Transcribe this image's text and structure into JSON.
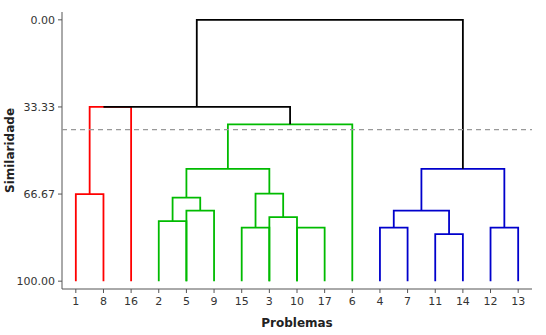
{
  "chart_data": {
    "type": "dendrogram",
    "x_label": "Problemas",
    "y_label": "Similaridade",
    "categories": [
      "1",
      "8",
      "16",
      "2",
      "5",
      "9",
      "15",
      "3",
      "10",
      "17",
      "6",
      "4",
      "7",
      "11",
      "14",
      "12",
      "13"
    ],
    "ylim": [
      103.0,
      -3.0
    ],
    "yticks": [
      {
        "value": 0.0,
        "label": "0.00"
      },
      {
        "value": 33.33,
        "label": "33.33"
      },
      {
        "value": 66.67,
        "label": "66.67"
      },
      {
        "value": 100.0,
        "label": "100.00"
      }
    ],
    "grid": false,
    "threshold": 42.0,
    "threshold_color": "#999999",
    "clusters": [
      {
        "color": "#ff0000",
        "merges": [
          {
            "x1": 0,
            "x2": 1,
            "h": 66.67,
            "h1": 100.0,
            "h2": 100.0
          },
          {
            "x1": 0.5,
            "x2": 2,
            "h": 33.33,
            "h1": 66.67,
            "h2": 100.0
          }
        ]
      },
      {
        "color": "#00bb00",
        "merges": [
          {
            "x1": 3,
            "x2": 4,
            "h": 77.0,
            "h1": 100.0,
            "h2": 100.0
          },
          {
            "x1": 4,
            "x2": 5,
            "h": 73.0,
            "h1": 100.0,
            "h2": 100.0
          },
          {
            "x1": 3.5,
            "x2": 4.5,
            "h": 68.0,
            "h1": 77.0,
            "h2": 73.0
          },
          {
            "x1": 6,
            "x2": 7,
            "h": 79.5,
            "h1": 100.0,
            "h2": 100.0
          },
          {
            "x1": 8,
            "x2": 9,
            "h": 79.5,
            "h1": 100.0,
            "h2": 100.0
          },
          {
            "x1": 7,
            "x2": 8,
            "h": 75.5,
            "h1": 100.0,
            "h2": 100.0
          },
          {
            "x1": 6.5,
            "x2": 7.5,
            "h": 66.5,
            "h1": 79.5,
            "h2": 75.5
          },
          {
            "x1": 4.0,
            "x2": 7.0,
            "h": 57.0,
            "h1": 68.0,
            "h2": 66.5
          },
          {
            "x1": 5.5,
            "x2": 10,
            "h": 40.0,
            "h1": 57.0,
            "h2": 100.0
          }
        ]
      },
      {
        "color": "#0000cc",
        "merges": [
          {
            "x1": 11,
            "x2": 12,
            "h": 79.5,
            "h1": 100.0,
            "h2": 100.0
          },
          {
            "x1": 13,
            "x2": 14,
            "h": 82.0,
            "h1": 100.0,
            "h2": 100.0
          },
          {
            "x1": 11.5,
            "x2": 13.5,
            "h": 73.0,
            "h1": 79.5,
            "h2": 82.0
          },
          {
            "x1": 15,
            "x2": 16,
            "h": 79.5,
            "h1": 100.0,
            "h2": 100.0
          },
          {
            "x1": 12.5,
            "x2": 15.5,
            "h": 57.0,
            "h1": 73.0,
            "h2": 79.5
          }
        ]
      },
      {
        "color": "#000000",
        "merges": [
          {
            "x1": 1.0,
            "x2": 7.75,
            "h": 33.33,
            "h1": 33.33,
            "h2": 40.0
          },
          {
            "x1": 4.375,
            "x2": 14.0,
            "h": 0.0,
            "h1": 33.33,
            "h2": 57.0
          }
        ]
      }
    ]
  }
}
